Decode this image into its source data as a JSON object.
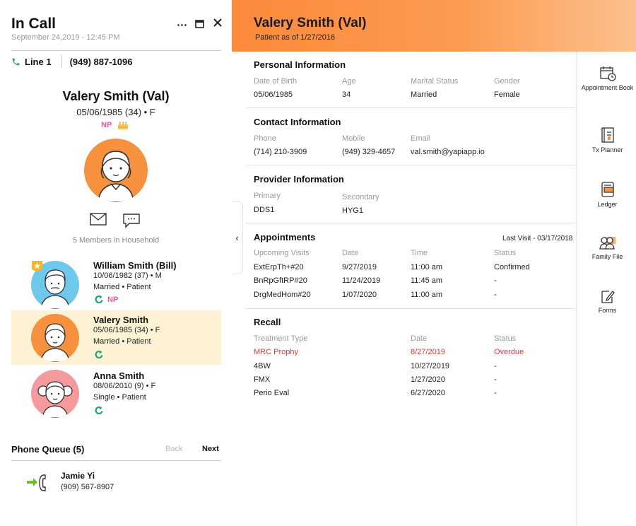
{
  "call": {
    "title": "In Call",
    "datetime": "September 24,2019 - 12:45 PM",
    "line_label": "Line 1",
    "phone": "(949) 887-1096"
  },
  "patient_card": {
    "name": "Valery Smith (Val)",
    "dob_line": "05/06/1985  (34) • F",
    "np_badge": "NP",
    "household": "5 Members in Household"
  },
  "members": [
    {
      "name": "William Smith (Bill)",
      "dob": "10/06/1982 (37) • M",
      "status": "Married • Patient",
      "np": "NP"
    },
    {
      "name": "Valery Smith",
      "dob": "05/06/1985 (34) • F",
      "status": "Married • Patient",
      "np": ""
    },
    {
      "name": "Anna Smith",
      "dob": "08/06/2010 (9) • F",
      "status": "Single • Patient",
      "np": ""
    }
  ],
  "queue": {
    "title": "Phone Queue (5)",
    "back": "Back",
    "next": "Next",
    "caller_name": "Jamie Yi",
    "caller_phone": "(909) 567-8907"
  },
  "header": {
    "name": "Valery Smith (Val)",
    "subtitle": "Patient as of 1/27/2016"
  },
  "personal": {
    "title": "Personal Information",
    "labels": [
      "Date of Birth",
      "Age",
      "Marital Status",
      "Gender"
    ],
    "values": [
      "05/06/1985",
      "34",
      "Married",
      "Female"
    ]
  },
  "contact": {
    "title": "Contact Information",
    "labels": [
      "Phone",
      "Mobile",
      "Email"
    ],
    "values": [
      "(714) 210-3909",
      "(949) 329-4657",
      "val.smith@yapiapp.io"
    ]
  },
  "provider": {
    "title": "Provider Information",
    "labels": [
      "Primary",
      "Secondary"
    ],
    "values": [
      "DDS1",
      "HYG1"
    ]
  },
  "appointments": {
    "title": "Appointments",
    "last_visit": "Last Visit - 03/17/2018",
    "headers": [
      "Upcoming Visits",
      "Date",
      "Time",
      "Status"
    ],
    "rows": [
      [
        "ExtErpTh+#20",
        "9/27/2019",
        "11:00 am",
        "Confirmed"
      ],
      [
        "BnRpGftRP#20",
        "11/24/2019",
        "11:45 am",
        "-"
      ],
      [
        "DrgMedHom#20",
        "1/07/2020",
        "11:00 am",
        "-"
      ]
    ]
  },
  "recall": {
    "title": "Recall",
    "headers": [
      "Treatment Type",
      "Date",
      "Status"
    ],
    "rows": [
      [
        "MRC Prophy",
        "8/27/2019",
        "Overdue"
      ],
      [
        "4BW",
        "10/27/2019",
        "-"
      ],
      [
        "FMX",
        "1/27/2020",
        "-"
      ],
      [
        "Perio Eval",
        "6/27/2020",
        "-"
      ]
    ]
  },
  "rail": [
    {
      "label": "Appointment Book",
      "icon": "calendar-clock-icon"
    },
    {
      "label": "Tx Planner",
      "icon": "notebook-icon"
    },
    {
      "label": "Ledger",
      "icon": "ledger-icon"
    },
    {
      "label": "Family File",
      "icon": "family-icon"
    },
    {
      "label": "Forms",
      "icon": "form-pencil-icon"
    }
  ],
  "colors": {
    "accent_orange": "#fb8a3a",
    "active_row": "#fdf2d3",
    "np_pink": "#f0589e",
    "overdue_red": "#e53935",
    "refresh_green": "#1fa67a"
  }
}
